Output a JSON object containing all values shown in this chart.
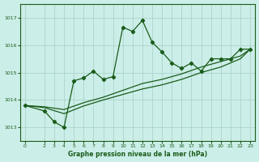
{
  "title": "Graphe pression niveau de la mer (hPa)",
  "bg_color": "#cceee8",
  "grid_color": "#aad4cc",
  "line_color": "#1a5c1a",
  "xlim": [
    -0.5,
    23.5
  ],
  "ylim": [
    1012.5,
    1017.5
  ],
  "yticks": [
    1013,
    1014,
    1015,
    1016,
    1017
  ],
  "xticks": [
    0,
    2,
    3,
    4,
    5,
    6,
    7,
    8,
    9,
    10,
    11,
    12,
    13,
    14,
    15,
    16,
    17,
    18,
    19,
    20,
    21,
    22,
    23
  ],
  "line1_x": [
    0,
    2,
    3,
    4,
    5,
    6,
    7,
    8,
    9,
    10,
    11,
    12,
    13,
    14,
    15,
    16,
    17,
    18,
    19,
    20,
    21,
    22,
    23
  ],
  "line1_y": [
    1013.8,
    1013.6,
    1013.2,
    1013.0,
    1014.7,
    1014.8,
    1015.05,
    1014.75,
    1014.85,
    1016.65,
    1016.5,
    1016.9,
    1016.1,
    1015.75,
    1015.35,
    1015.15,
    1015.35,
    1015.05,
    1015.5,
    1015.5,
    1015.5,
    1015.85,
    1015.85
  ],
  "line2_x": [
    0,
    2,
    4,
    6,
    8,
    10,
    12,
    14,
    16,
    18,
    20,
    22,
    23
  ],
  "line2_y": [
    1013.8,
    1013.72,
    1013.5,
    1013.78,
    1014.0,
    1014.2,
    1014.4,
    1014.55,
    1014.75,
    1015.0,
    1015.2,
    1015.5,
    1015.85
  ],
  "line3_x": [
    0,
    2,
    4,
    6,
    8,
    10,
    12,
    14,
    16,
    18,
    20,
    22,
    23
  ],
  "line3_y": [
    1013.8,
    1013.75,
    1013.65,
    1013.9,
    1014.1,
    1014.35,
    1014.6,
    1014.75,
    1014.95,
    1015.2,
    1015.4,
    1015.6,
    1015.85
  ]
}
